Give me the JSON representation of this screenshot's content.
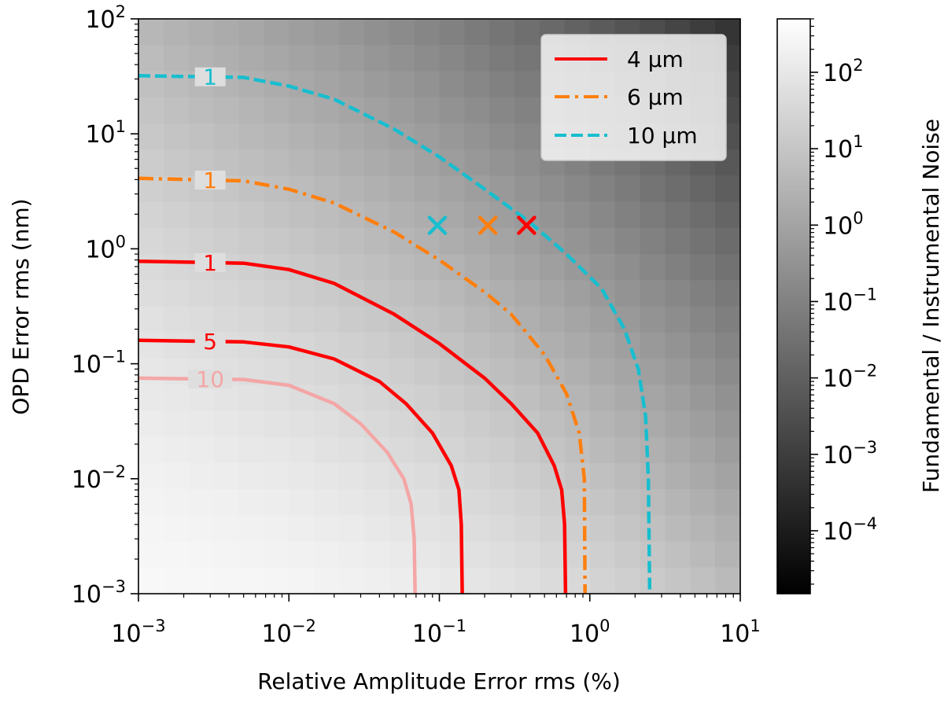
{
  "chart_data": {
    "type": "heatmap",
    "xscale": "log",
    "yscale": "log",
    "xlim": [
      0.001,
      10
    ],
    "ylim": [
      0.001,
      100
    ],
    "xlabel": "Relative Amplitude Error rms (%)",
    "ylabel": "OPD Error rms (nm)",
    "x_ticks": [
      {
        "value": 0.001,
        "base": "10",
        "exp": "−3"
      },
      {
        "value": 0.01,
        "base": "10",
        "exp": "−2"
      },
      {
        "value": 0.1,
        "base": "10",
        "exp": "−1"
      },
      {
        "value": 1,
        "base": "10",
        "exp": "0"
      },
      {
        "value": 10,
        "base": "10",
        "exp": "1"
      }
    ],
    "y_ticks": [
      {
        "value": 0.001,
        "base": "10",
        "exp": "−3"
      },
      {
        "value": 0.01,
        "base": "10",
        "exp": "−2"
      },
      {
        "value": 0.1,
        "base": "10",
        "exp": "−1"
      },
      {
        "value": 1,
        "base": "10",
        "exp": "0"
      },
      {
        "value": 10,
        "base": "10",
        "exp": "1"
      },
      {
        "value": 100,
        "base": "10",
        "exp": "2"
      }
    ],
    "colorbar": {
      "label": "Fundamental / Instrumental Noise",
      "scale": "log",
      "range": [
        1.5e-05,
        500
      ],
      "colormap": "gray",
      "ticks": [
        {
          "value": 0.0001,
          "base": "10",
          "exp": "−4"
        },
        {
          "value": 0.001,
          "base": "10",
          "exp": "−3"
        },
        {
          "value": 0.01,
          "base": "10",
          "exp": "−2"
        },
        {
          "value": 0.1,
          "base": "10",
          "exp": "−1"
        },
        {
          "value": 1,
          "base": "10",
          "exp": "0"
        },
        {
          "value": 10,
          "base": "10",
          "exp": "1"
        },
        {
          "value": 100,
          "base": "10",
          "exp": "2"
        }
      ]
    },
    "legend": {
      "position": "top-right",
      "entries": [
        {
          "label": "4 µm",
          "color": "#ff0000",
          "style": "solid"
        },
        {
          "label": "6 µm",
          "color": "#ff7f0e",
          "style": "dashdot"
        },
        {
          "label": "10 µm",
          "color": "#17becf",
          "style": "dashed"
        }
      ]
    },
    "contours": [
      {
        "wavelength": "10 µm",
        "level": 1,
        "label": "1",
        "color": "#17becf",
        "style": "dashed",
        "points": [
          [
            0.001,
            32
          ],
          [
            0.005,
            31
          ],
          [
            0.01,
            26
          ],
          [
            0.02,
            20
          ],
          [
            0.05,
            11
          ],
          [
            0.1,
            6.3
          ],
          [
            0.2,
            3.3
          ],
          [
            0.4,
            1.7
          ],
          [
            0.7,
            0.9
          ],
          [
            1.2,
            0.45
          ],
          [
            1.7,
            0.2
          ],
          [
            2.1,
            0.09
          ],
          [
            2.35,
            0.035
          ],
          [
            2.45,
            0.01
          ],
          [
            2.5,
            0.001
          ]
        ]
      },
      {
        "wavelength": "6 µm",
        "level": 1,
        "label": "1",
        "color": "#ff7f0e",
        "style": "dashdot",
        "points": [
          [
            0.001,
            4.1
          ],
          [
            0.005,
            3.9
          ],
          [
            0.01,
            3.3
          ],
          [
            0.02,
            2.5
          ],
          [
            0.05,
            1.4
          ],
          [
            0.1,
            0.8
          ],
          [
            0.2,
            0.42
          ],
          [
            0.3,
            0.27
          ],
          [
            0.5,
            0.12
          ],
          [
            0.7,
            0.055
          ],
          [
            0.85,
            0.025
          ],
          [
            0.92,
            0.01
          ],
          [
            0.93,
            0.001
          ]
        ]
      },
      {
        "wavelength": "4 µm",
        "level": 1,
        "label": "1",
        "color": "#ff0000",
        "style": "solid",
        "points": [
          [
            0.001,
            0.78
          ],
          [
            0.005,
            0.75
          ],
          [
            0.01,
            0.66
          ],
          [
            0.02,
            0.5
          ],
          [
            0.05,
            0.27
          ],
          [
            0.1,
            0.15
          ],
          [
            0.2,
            0.075
          ],
          [
            0.3,
            0.045
          ],
          [
            0.45,
            0.025
          ],
          [
            0.58,
            0.013
          ],
          [
            0.65,
            0.008
          ],
          [
            0.68,
            0.004
          ],
          [
            0.69,
            0.001
          ]
        ]
      },
      {
        "wavelength": "4 µm",
        "level": 5,
        "label": "5",
        "color": "#ff0000",
        "style": "solid",
        "points": [
          [
            0.001,
            0.16
          ],
          [
            0.005,
            0.155
          ],
          [
            0.01,
            0.14
          ],
          [
            0.02,
            0.11
          ],
          [
            0.04,
            0.07
          ],
          [
            0.06,
            0.045
          ],
          [
            0.09,
            0.025
          ],
          [
            0.12,
            0.013
          ],
          [
            0.135,
            0.008
          ],
          [
            0.14,
            0.004
          ],
          [
            0.142,
            0.001
          ]
        ]
      },
      {
        "wavelength": "4 µm",
        "level": 10,
        "label": "10",
        "color": "#f4a6a6",
        "style": "solid",
        "points": [
          [
            0.001,
            0.075
          ],
          [
            0.005,
            0.073
          ],
          [
            0.01,
            0.065
          ],
          [
            0.02,
            0.045
          ],
          [
            0.03,
            0.03
          ],
          [
            0.045,
            0.017
          ],
          [
            0.058,
            0.01
          ],
          [
            0.065,
            0.006
          ],
          [
            0.068,
            0.003
          ],
          [
            0.069,
            0.001
          ]
        ]
      }
    ],
    "markers": [
      {
        "x": 0.097,
        "y": 1.6,
        "color": "#17becf",
        "symbol": "x"
      },
      {
        "x": 0.21,
        "y": 1.6,
        "color": "#ff7f0e",
        "symbol": "x"
      },
      {
        "x": 0.38,
        "y": 1.6,
        "color": "#ff0000",
        "symbol": "x"
      }
    ]
  }
}
